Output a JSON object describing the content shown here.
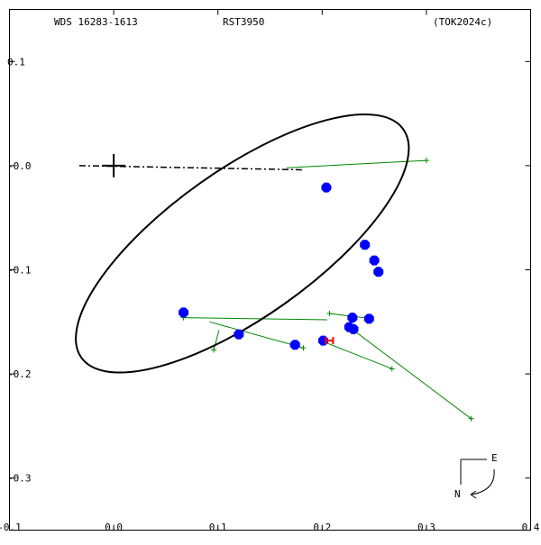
{
  "header": {
    "left": "WDS 16283-1613",
    "center": "RST3950",
    "right": "(TOK2024c)"
  },
  "compass": {
    "east": "E",
    "north": "N"
  },
  "colors": {
    "orbit": "#000000",
    "observation": "#0000ff",
    "residual": "#008800",
    "highlight": "#ff0000"
  },
  "chart_data": {
    "type": "scatter",
    "title": "",
    "xlabel": "",
    "ylabel": "",
    "xlim": [
      -0.1,
      0.4
    ],
    "ylim": [
      -0.35,
      0.15
    ],
    "x_ticks": [
      {
        "value": -0.1,
        "label": "-0.1"
      },
      {
        "value": 0.0,
        "label": "0.0"
      },
      {
        "value": 0.1,
        "label": "0.1"
      },
      {
        "value": 0.2,
        "label": "0.2"
      },
      {
        "value": 0.3,
        "label": "0.3"
      },
      {
        "value": 0.4,
        "label": "0.4"
      }
    ],
    "y_ticks": [
      {
        "value": 0.1,
        "label": "0.1"
      },
      {
        "value": 0.0,
        "label": "-0.0"
      },
      {
        "value": -0.1,
        "label": "-0.1"
      },
      {
        "value": -0.2,
        "label": "-0.2"
      },
      {
        "value": -0.3,
        "label": "-0.3"
      }
    ],
    "primary": {
      "x": 0.0,
      "y": 0.0
    },
    "orbit_ellipse": {
      "center": [
        0.1234,
        -0.0747
      ],
      "semi_axes": [
        0.1894,
        0.0707
      ],
      "rotation_deg": -35.4
    },
    "line_of_nodes": {
      "from": [
        -0.033,
        0.0
      ],
      "to": [
        0.183,
        -0.004
      ]
    },
    "observations": [
      {
        "x": 0.204,
        "y": -0.021,
        "cx": 0.204,
        "cy": -0.021
      },
      {
        "x": 0.241,
        "y": -0.076,
        "cx": 0.241,
        "cy": -0.076
      },
      {
        "x": 0.25,
        "y": -0.091,
        "cx": 0.25,
        "cy": -0.091
      },
      {
        "x": 0.254,
        "y": -0.102,
        "cx": 0.254,
        "cy": -0.102
      },
      {
        "x": 0.067,
        "y": -0.141,
        "cx": 0.067,
        "cy": -0.141
      },
      {
        "x": 0.229,
        "y": -0.146,
        "cx": 0.229,
        "cy": -0.146
      },
      {
        "x": 0.245,
        "y": -0.147,
        "cx": 0.245,
        "cy": -0.147
      },
      {
        "x": 0.226,
        "y": -0.155,
        "cx": 0.226,
        "cy": -0.155
      },
      {
        "x": 0.23,
        "y": -0.157,
        "cx": 0.23,
        "cy": -0.157
      },
      {
        "x": 0.12,
        "y": -0.162,
        "cx": 0.12,
        "cy": -0.162
      },
      {
        "x": 0.201,
        "y": -0.168,
        "cx": 0.201,
        "cy": -0.168
      },
      {
        "x": 0.174,
        "y": -0.172,
        "cx": 0.174,
        "cy": -0.172
      }
    ],
    "residual_points": [
      {
        "x": 0.3,
        "y": 0.005,
        "cx": 0.166,
        "cy": -0.002
      },
      {
        "x": 0.207,
        "y": -0.142,
        "cx": 0.24,
        "cy": -0.146
      },
      {
        "x": 0.067,
        "y": -0.146,
        "cx": 0.205,
        "cy": -0.148
      },
      {
        "x": 0.096,
        "y": -0.177,
        "cx": 0.101,
        "cy": -0.158
      },
      {
        "x": 0.182,
        "y": -0.175,
        "cx": 0.092,
        "cy": -0.15
      },
      {
        "x": 0.267,
        "y": -0.195,
        "cx": 0.201,
        "cy": -0.169
      },
      {
        "x": 0.343,
        "y": -0.243,
        "cx": 0.226,
        "cy": -0.155
      }
    ],
    "highlight_points": [
      {
        "x": 0.207,
        "y": -0.168
      }
    ]
  }
}
